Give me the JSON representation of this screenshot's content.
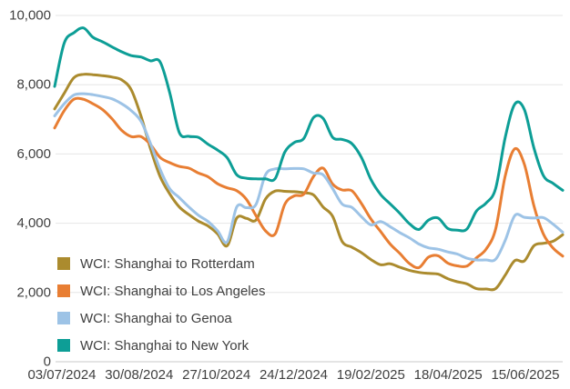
{
  "chart_data": {
    "type": "line",
    "title": "",
    "x_axis": {
      "tick_labels": [
        "03/07/2024",
        "30/08/2024",
        "27/10/2024",
        "24/12/2024",
        "19/02/2025",
        "18/04/2025",
        "15/06/2025"
      ],
      "frequency": "weekly"
    },
    "y_axis": {
      "tick_labels": [
        "0",
        "2,000",
        "4,000",
        "6,000",
        "8,000",
        "10,000"
      ],
      "tick_values": [
        0,
        2000,
        4000,
        6000,
        8000,
        10000
      ],
      "range": [
        0,
        10000
      ]
    },
    "grid": "horizontal",
    "legend_position": "bottom-left-overlay",
    "series": [
      {
        "name": "WCI: Shanghai to Rotterdam",
        "color": "#ab8b2e",
        "values": [
          7300,
          7750,
          8200,
          8300,
          8290,
          8260,
          8220,
          8140,
          7850,
          7100,
          6150,
          5350,
          4850,
          4470,
          4250,
          4060,
          3920,
          3690,
          3350,
          4150,
          4140,
          4090,
          4700,
          4930,
          4920,
          4910,
          4880,
          4820,
          4470,
          4200,
          3470,
          3310,
          3150,
          2950,
          2800,
          2830,
          2730,
          2640,
          2580,
          2550,
          2530,
          2400,
          2310,
          2250,
          2110,
          2100,
          2110,
          2500,
          2920,
          2910,
          3350,
          3420,
          3480,
          3670
        ]
      },
      {
        "name": "WCI: Shanghai to Los Angeles",
        "color": "#e87e33",
        "values": [
          6750,
          7250,
          7580,
          7580,
          7450,
          7280,
          7010,
          6680,
          6500,
          6500,
          6270,
          5900,
          5750,
          5640,
          5590,
          5450,
          5340,
          5140,
          5020,
          4940,
          4690,
          4220,
          3780,
          3690,
          4540,
          4790,
          4840,
          5350,
          5590,
          5130,
          4960,
          4940,
          4570,
          4120,
          3760,
          3400,
          3130,
          2840,
          2720,
          3020,
          3060,
          2850,
          2770,
          2760,
          3000,
          3250,
          3830,
          5360,
          6150,
          5700,
          4500,
          3680,
          3280,
          3050
        ]
      },
      {
        "name": "WCI: Shanghai to Genoa",
        "color": "#9dc3e6",
        "values": [
          7100,
          7450,
          7700,
          7740,
          7710,
          7660,
          7590,
          7450,
          7250,
          6950,
          6300,
          5560,
          5000,
          4740,
          4470,
          4230,
          4050,
          3780,
          3460,
          4470,
          4450,
          4540,
          5400,
          5570,
          5570,
          5580,
          5570,
          5450,
          5400,
          5000,
          4550,
          4460,
          4190,
          3950,
          4050,
          3900,
          3730,
          3580,
          3400,
          3290,
          3250,
          3170,
          3110,
          2990,
          2940,
          2940,
          2960,
          3500,
          4220,
          4170,
          4150,
          4160,
          3970,
          3740
        ]
      },
      {
        "name": "WCI: Shanghai to New York",
        "color": "#0d9e96",
        "values": [
          7950,
          9200,
          9500,
          9640,
          9370,
          9240,
          9090,
          8950,
          8840,
          8800,
          8690,
          8660,
          7780,
          6620,
          6510,
          6480,
          6280,
          6110,
          5890,
          5400,
          5300,
          5280,
          5280,
          5290,
          6050,
          6330,
          6450,
          7050,
          7030,
          6480,
          6420,
          6300,
          5900,
          5260,
          4830,
          4560,
          4290,
          3990,
          3820,
          4090,
          4150,
          3850,
          3800,
          3830,
          4350,
          4580,
          5000,
          6470,
          7440,
          7280,
          6170,
          5370,
          5150,
          4950
        ]
      }
    ]
  },
  "style": {
    "text_color": "#404040",
    "gridline_color": "#e6e6e6",
    "axis_line_color": "#c9c9c9",
    "background": "#ffffff",
    "line_width": 3
  }
}
